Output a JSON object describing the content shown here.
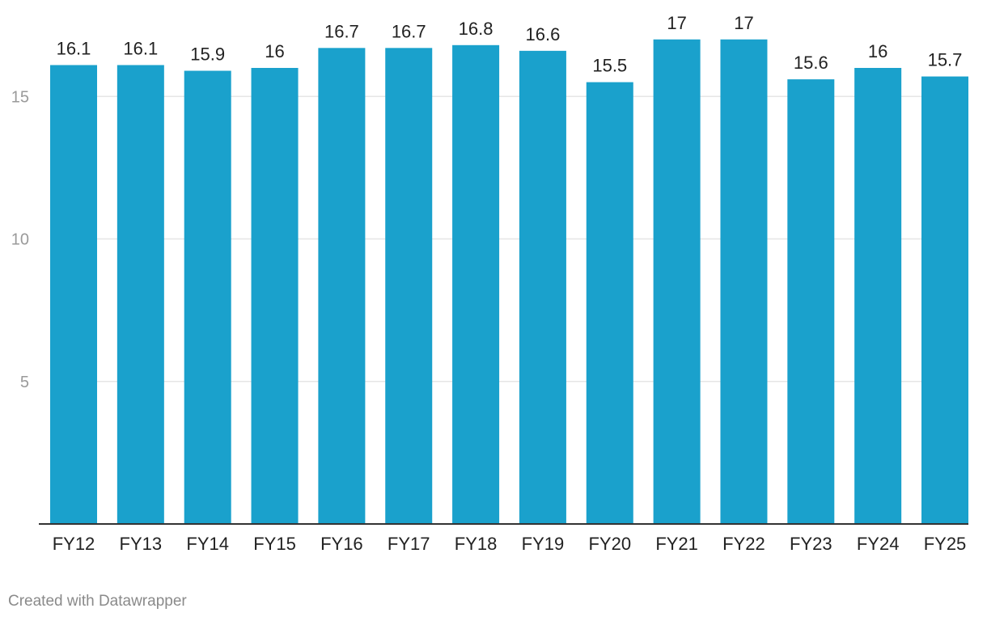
{
  "chart_data": {
    "type": "bar",
    "categories": [
      "FY12",
      "FY13",
      "FY14",
      "FY15",
      "FY16",
      "FY17",
      "FY18",
      "FY19",
      "FY20",
      "FY21",
      "FY22",
      "FY23",
      "FY24",
      "FY25"
    ],
    "values": [
      16.1,
      16.1,
      15.9,
      16,
      16.7,
      16.7,
      16.8,
      16.6,
      15.5,
      17,
      17,
      15.6,
      16,
      15.7
    ],
    "value_labels": [
      "16.1",
      "16.1",
      "15.9",
      "16",
      "16.7",
      "16.7",
      "16.8",
      "16.6",
      "15.5",
      "17",
      "17",
      "15.6",
      "16",
      "15.7"
    ],
    "title": "",
    "xlabel": "",
    "ylabel": "",
    "ylim": [
      0,
      17
    ],
    "yticks": [
      5,
      10,
      15
    ],
    "ytick_labels": [
      "5",
      "10",
      "15"
    ],
    "grid": true,
    "bar_color": "#1aa1cc",
    "grid_color": "#e6e6e6",
    "axis_color": "#333333",
    "label_color": "#222222",
    "tick_label_color": "#9a9a9a"
  },
  "footer": {
    "credit": "Created with Datawrapper"
  }
}
